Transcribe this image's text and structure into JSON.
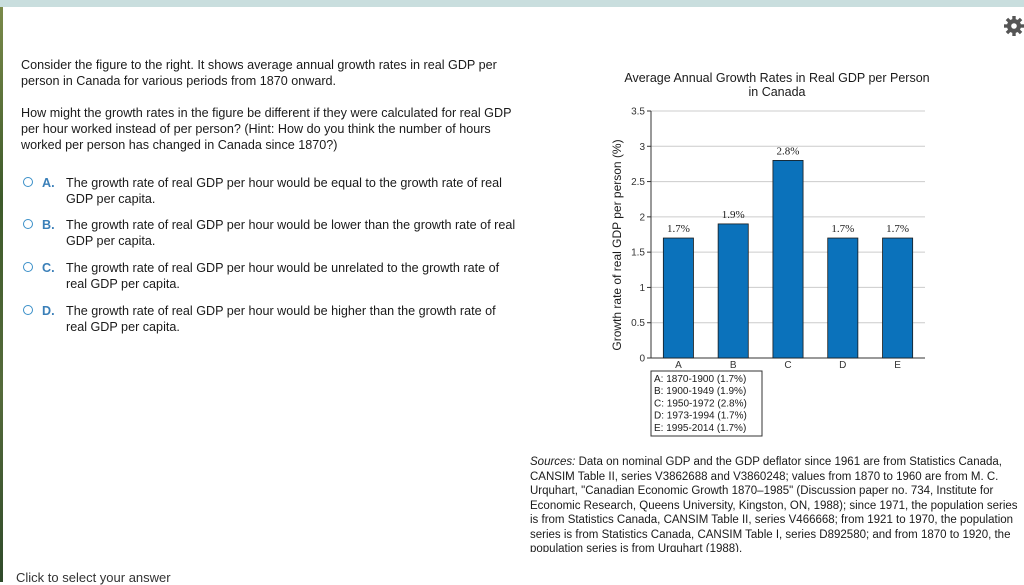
{
  "question": {
    "intro": "Consider the figure to the right. It shows average annual growth rates in real GDP per person in Canada for various periods from 1870 onward.",
    "prompt": "How might the growth rates in the figure be different if they were calculated for real GDP per hour worked instead of per person? (Hint: How do you think the number of hours worked per person has changed in Canada since 1870?)",
    "options": [
      {
        "letter": "A.",
        "text": "The growth rate of real GDP per hour would be equal to the growth rate of real GDP per capita."
      },
      {
        "letter": "B.",
        "text": "The growth rate of real GDP per hour would be lower than the growth rate of real GDP per capita."
      },
      {
        "letter": "C.",
        "text": "The growth rate of real GDP per hour would be unrelated to the growth rate of real GDP per capita."
      },
      {
        "letter": "D.",
        "text": "The growth rate of real GDP per hour would be higher than the growth rate of real GDP per capita."
      }
    ]
  },
  "chart_data": {
    "type": "bar",
    "title_line1": "Average Annual Growth Rates in Real GDP per Person",
    "title_line2": "in Canada",
    "ylabel": "Growth rate of real GDP per person (%)",
    "xlabel": "",
    "categories": [
      "A",
      "B",
      "C",
      "D",
      "E"
    ],
    "values": [
      1.7,
      1.9,
      2.8,
      1.7,
      1.7
    ],
    "data_labels": [
      "1.7%",
      "1.9%",
      "2.8%",
      "1.7%",
      "1.7%"
    ],
    "ylim": [
      0,
      3.5
    ],
    "yticks": [
      0,
      0.5,
      1,
      1.5,
      2,
      2.5,
      3,
      3.5
    ],
    "ytick_labels": [
      "0",
      "0.5",
      "1",
      "1.5",
      "2",
      "2.5",
      "3",
      "3.5"
    ],
    "grid": true,
    "bar_color": "#0b72bb",
    "legend": [
      "A: 1870-1900 (1.7%)",
      "B: 1900-1949 (1.9%)",
      "C: 1950-1972 (2.8%)",
      "D: 1973-1994 (1.7%)",
      "E: 1995-2014 (1.7%)"
    ]
  },
  "sources": {
    "label": "Sources:",
    "text": "Data on nominal GDP and the GDP deflator since 1961 are from Statistics Canada, CANSIM Table II, series V3862688 and V3860248; values from 1870 to 1960 are from M. C. Urquhart, \"Canadian Economic Growth 1870–1985\" (Discussion paper no. 734, Institute for Economic Research, Queens University, Kingston, ON, 1988); since 1971, the population series is from Statistics Canada, CANSIM Table II, series V466668; from 1921 to 1970, the population series is from Statistics Canada, CANSIM Table I, series D892580; and from 1870 to 1920, the population series is from Urquhart (1988)."
  },
  "footer": {
    "hint": "Click to select your answer"
  },
  "colors": {
    "accent": "#3a7fb8",
    "bar": "#0b72bb"
  }
}
